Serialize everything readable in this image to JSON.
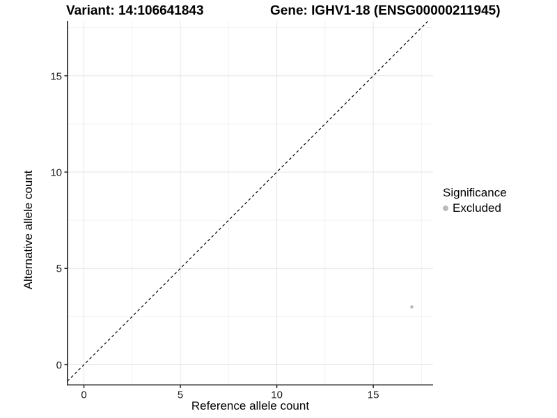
{
  "titles": {
    "variant": "Variant: 14:106641843",
    "gene": "Gene: IGHV1-18 (ENSG00000211945)"
  },
  "axes": {
    "x_label": "Reference allele count",
    "y_label": "Alternative allele count"
  },
  "legend": {
    "title": "Significance",
    "items": [
      {
        "label": "Excluded",
        "color": "#bcbcbc"
      }
    ]
  },
  "chart_data": {
    "type": "scatter",
    "title": "Variant: 14:106641843 / Gene: IGHV1-18 (ENSG00000211945)",
    "xlabel": "Reference allele count",
    "ylabel": "Alternative allele count",
    "xlim": [
      -0.85,
      18.1
    ],
    "ylim": [
      -1.05,
      17.85
    ],
    "x_ticks": [
      0,
      5,
      10,
      15
    ],
    "y_ticks": [
      0,
      5,
      10,
      15
    ],
    "x_minor_ticks": [
      2.5,
      7.5,
      12.5,
      17.5
    ],
    "y_minor_ticks": [
      2.5,
      7.5,
      12.5,
      17.5
    ],
    "grid": true,
    "legend_position": "right",
    "series": [
      {
        "name": "Excluded",
        "color": "#bcbcbc",
        "points": [
          [
            17,
            3
          ]
        ]
      }
    ],
    "reference_line": {
      "type": "identity",
      "slope": 1,
      "intercept": 0,
      "style": "dashed",
      "color": "#000000"
    },
    "colors": {
      "background": "#ffffff",
      "major_grid": "#e6e6e6",
      "minor_grid": "#f2f2f2",
      "axis_line": "#1a1a1a",
      "tick_label": "#1a1a1a",
      "point": "#bcbcbc"
    }
  }
}
